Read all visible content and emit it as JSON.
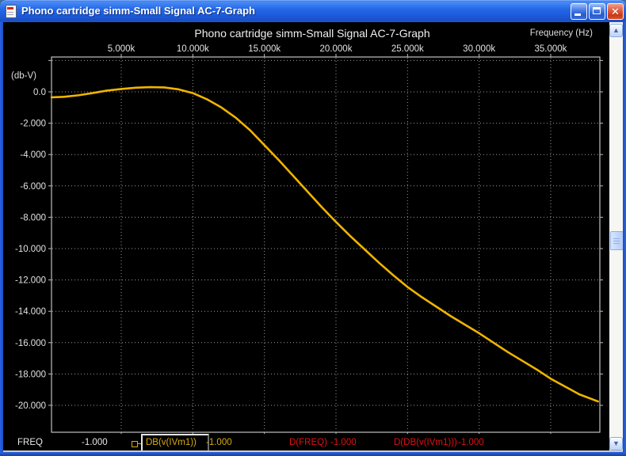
{
  "window": {
    "title": "Phono cartridge simm-Small Signal AC-7-Graph",
    "close_glyph": "x",
    "scroll_up_glyph": "▲",
    "scroll_down_glyph": "▼"
  },
  "chart_data": {
    "type": "line",
    "title": "Phono cartridge simm-Small Signal AC-7-Graph",
    "x_axis_label": "Frequency  (Hz)",
    "y_axis_label": "(db-V)",
    "x_tick_labels": [
      "5.000k",
      "10.000k",
      "15.000k",
      "20.000k",
      "25.000k",
      "30.000k",
      "35.000k"
    ],
    "x_tick_values": [
      5000,
      10000,
      15000,
      20000,
      25000,
      30000,
      35000
    ],
    "y_tick_labels": [
      "0.0",
      "-2.000",
      "-4.000",
      "-6.000",
      "-8.000",
      "-10.000",
      "-12.000",
      "-14.000",
      "-16.000",
      "-18.000",
      "-20.000"
    ],
    "y_tick_values": [
      0,
      -2,
      -4,
      -6,
      -8,
      -10,
      -12,
      -14,
      -16,
      -18,
      -20
    ],
    "y_grid_values": [
      2,
      0,
      -2,
      -4,
      -6,
      -8,
      -10,
      -12,
      -14,
      -16,
      -18,
      -20
    ],
    "x_range": [
      130,
      38300
    ],
    "y_range": [
      2.2,
      -21.7
    ],
    "grid": "dotted",
    "legend_position": "none",
    "series": [
      {
        "name": "DB(v(IVm1))",
        "color": "#f0b400",
        "x": [
          130,
          1000,
          2000,
          3000,
          4000,
          5000,
          6000,
          7000,
          8000,
          9000,
          10000,
          11000,
          12000,
          13000,
          14000,
          15000,
          16000,
          17000,
          18000,
          19000,
          20000,
          21000,
          22000,
          23000,
          24000,
          25000,
          26000,
          27000,
          28000,
          29000,
          30000,
          31000,
          32000,
          33000,
          34000,
          35000,
          36000,
          37000,
          38300
        ],
        "y": [
          -0.35,
          -0.32,
          -0.22,
          -0.08,
          0.08,
          0.18,
          0.26,
          0.3,
          0.28,
          0.16,
          -0.08,
          -0.48,
          -1.0,
          -1.65,
          -2.45,
          -3.4,
          -4.35,
          -5.35,
          -6.35,
          -7.35,
          -8.3,
          -9.2,
          -10.05,
          -10.9,
          -11.7,
          -12.45,
          -13.1,
          -13.7,
          -14.3,
          -14.85,
          -15.4,
          -16.0,
          -16.6,
          -17.15,
          -17.7,
          -18.3,
          -18.8,
          -19.3,
          -19.75
        ]
      }
    ]
  },
  "status_bar": {
    "freq_label": "FREQ",
    "freq_value": "-1.000",
    "trace_label": "DB(v(IVm1))",
    "trace_value": "-1.000",
    "dfreq_label": "D(FREQ)",
    "dfreq_value": "-1.000",
    "ddb_label": "D(DB(v(IVm1)))",
    "ddb_value": "-1.000"
  },
  "colors": {
    "curve": "#f0b400",
    "grid": "#9a9a9a",
    "frame": "#c0c0c0",
    "tick_text": "#e2e2e2",
    "status_yellow": "#d8ac10",
    "status_red": "#e41010",
    "titlebar_blue": "#2467e8"
  }
}
